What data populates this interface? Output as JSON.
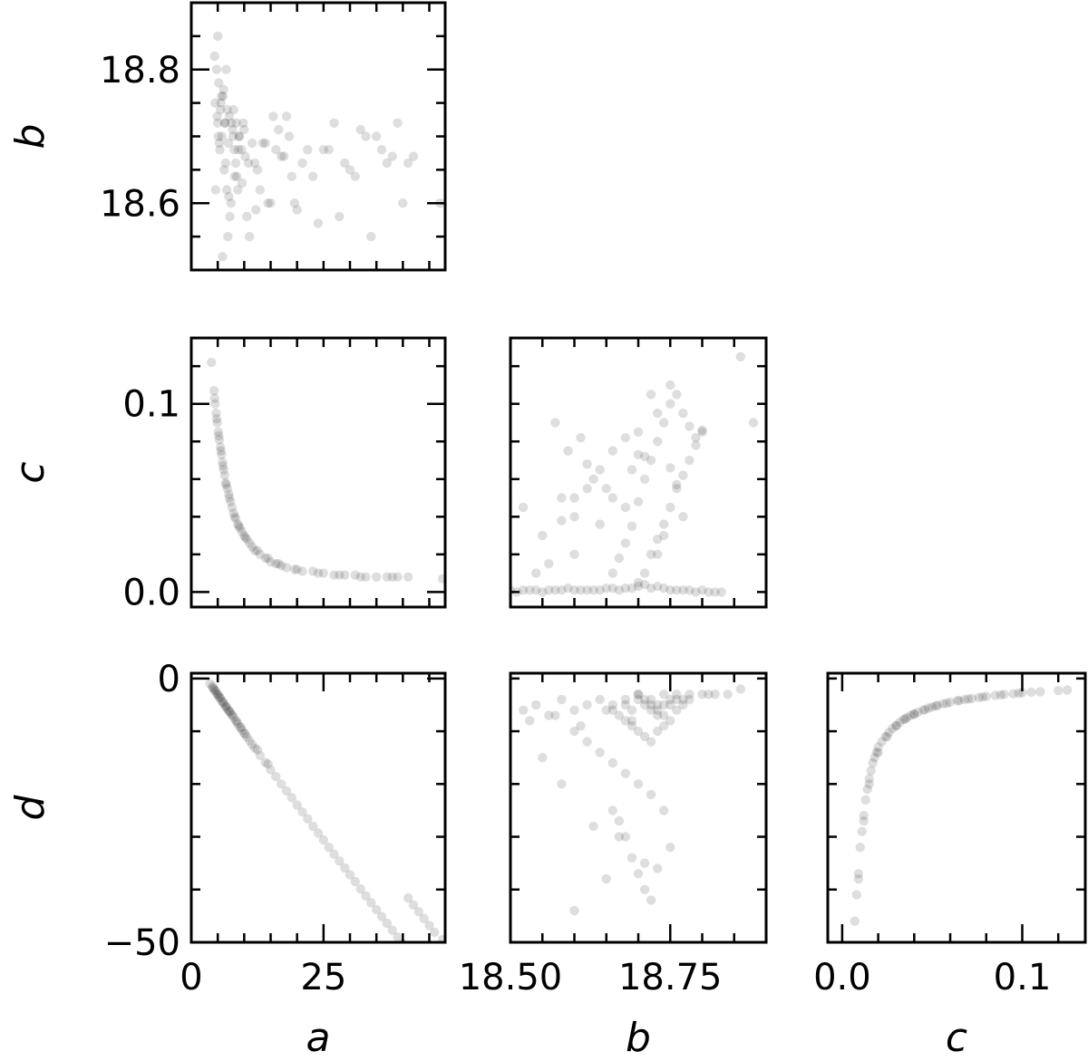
{
  "chart_data": [
    {
      "type": "scatter",
      "panel": "b-vs-a",
      "xlabel": "",
      "ylabel": "b",
      "xlim": [
        0,
        48
      ],
      "ylim": [
        18.5,
        18.9
      ],
      "xticks": [],
      "yticks": [
        18.6,
        18.8
      ],
      "ytick_labels": [
        "18.6",
        "18.8"
      ],
      "marker_color": "#000000",
      "x": [
        4.5,
        4.8,
        5.0,
        5.2,
        5.4,
        5.6,
        5.8,
        6.0,
        6.2,
        6.4,
        6.6,
        6.8,
        7.0,
        7.2,
        7.5,
        7.8,
        8.0,
        8.2,
        8.5,
        9.0,
        9.5,
        10.0,
        10.5,
        11.0,
        12.0,
        13.0,
        14.0,
        15.0,
        16.0,
        17.0,
        18.0,
        19.0,
        20.0,
        22.0,
        24.0,
        26.0,
        28.0,
        29.0,
        30.0,
        32.0,
        34.0,
        36.0,
        38.0,
        39.0,
        40.0,
        42.0,
        4.6,
        5.1,
        5.5,
        6.1,
        6.5,
        7.1,
        7.6,
        8.1,
        8.6,
        9.1,
        9.6,
        10.2,
        11.5,
        12.5,
        14.5,
        16.5,
        19.5,
        21.0,
        25.0,
        27.0,
        31.0,
        33.0,
        37.0,
        41.0,
        47.0,
        4.9,
        5.3,
        5.7,
        6.3,
        6.7,
        7.3,
        7.9,
        8.4,
        8.9,
        9.8,
        10.8,
        13.5,
        15.5,
        17.5,
        23.0,
        35.0,
        5.0,
        5.9,
        6.9,
        8.8,
        4.4,
        12.2,
        18.5
      ],
      "y": [
        18.75,
        18.8,
        18.72,
        18.78,
        18.68,
        18.75,
        18.7,
        18.76,
        18.65,
        18.72,
        18.8,
        18.74,
        18.69,
        18.73,
        18.6,
        18.71,
        18.74,
        18.64,
        18.72,
        18.7,
        18.68,
        18.71,
        18.58,
        18.55,
        18.66,
        18.62,
        18.69,
        18.6,
        18.68,
        18.67,
        18.73,
        18.64,
        18.59,
        18.68,
        18.57,
        18.68,
        18.58,
        18.66,
        18.65,
        18.71,
        18.55,
        18.68,
        18.67,
        18.72,
        18.6,
        18.67,
        18.62,
        18.7,
        18.74,
        18.77,
        18.66,
        18.61,
        18.72,
        18.68,
        18.64,
        18.7,
        18.63,
        18.67,
        18.69,
        18.65,
        18.6,
        18.71,
        18.6,
        18.66,
        18.68,
        18.72,
        18.64,
        18.7,
        18.66,
        18.66,
        18.6,
        18.73,
        18.69,
        18.76,
        18.72,
        18.62,
        18.58,
        18.7,
        18.66,
        18.68,
        18.72,
        18.66,
        18.69,
        18.73,
        18.67,
        18.64,
        18.7,
        18.85,
        18.52,
        18.55,
        18.62,
        18.82,
        18.59,
        18.7
      ]
    },
    {
      "type": "scatter",
      "panel": "c-vs-a",
      "xlabel": "",
      "ylabel": "c",
      "xlim": [
        0,
        48
      ],
      "ylim": [
        -0.008,
        0.135
      ],
      "xticks": [],
      "yticks": [
        0.0,
        0.1
      ],
      "ytick_labels": [
        "0.0",
        "0.1"
      ],
      "marker_color": "#000000",
      "x": [
        4.3,
        4.5,
        4.7,
        4.9,
        5.1,
        5.3,
        5.5,
        5.7,
        5.9,
        6.1,
        6.3,
        6.5,
        6.8,
        7.1,
        7.4,
        7.7,
        8.0,
        8.4,
        8.8,
        9.2,
        9.6,
        10.0,
        10.5,
        11.0,
        11.5,
        12.0,
        13.0,
        14.0,
        15.0,
        16.0,
        17.0,
        18.0,
        19.5,
        21.0,
        23.0,
        25.0,
        27.0,
        29.0,
        31.0,
        33.0,
        35.0,
        37.0,
        39.0,
        41.0,
        47.5,
        3.8,
        4.4,
        4.8,
        5.2,
        5.6,
        6.0,
        6.6,
        7.2,
        8.2,
        9.0,
        10.2,
        12.5,
        14.5,
        16.5,
        20.0,
        24.0,
        28.0,
        32.0,
        38.0
      ],
      "y": [
        0.107,
        0.1,
        0.095,
        0.09,
        0.085,
        0.081,
        0.077,
        0.073,
        0.069,
        0.065,
        0.062,
        0.058,
        0.055,
        0.052,
        0.048,
        0.045,
        0.042,
        0.039,
        0.036,
        0.034,
        0.032,
        0.03,
        0.028,
        0.026,
        0.024,
        0.022,
        0.02,
        0.018,
        0.016,
        0.015,
        0.014,
        0.013,
        0.012,
        0.011,
        0.011,
        0.01,
        0.009,
        0.009,
        0.009,
        0.008,
        0.008,
        0.008,
        0.008,
        0.008,
        0.007,
        0.122,
        0.103,
        0.092,
        0.083,
        0.075,
        0.067,
        0.057,
        0.05,
        0.04,
        0.035,
        0.029,
        0.022,
        0.018,
        0.015,
        0.012,
        0.01,
        0.009,
        0.008,
        0.008
      ]
    },
    {
      "type": "scatter",
      "panel": "c-vs-b",
      "xlabel": "",
      "ylabel": "",
      "xlim": [
        18.5,
        18.9
      ],
      "ylim": [
        -0.008,
        0.135
      ],
      "xticks": [],
      "yticks": [],
      "marker_color": "#000000",
      "x": [
        18.5,
        18.52,
        18.54,
        18.56,
        18.58,
        18.6,
        18.62,
        18.64,
        18.66,
        18.68,
        18.7,
        18.72,
        18.74,
        18.76,
        18.78,
        18.8,
        18.82,
        18.83,
        18.51,
        18.53,
        18.55,
        18.57,
        18.59,
        18.61,
        18.63,
        18.65,
        18.67,
        18.69,
        18.71,
        18.73,
        18.75,
        18.77,
        18.79,
        18.81,
        18.7,
        18.71,
        18.72,
        18.73,
        18.74,
        18.75,
        18.76,
        18.77,
        18.78,
        18.79,
        18.8,
        18.66,
        18.67,
        18.68,
        18.69,
        18.7,
        18.71,
        18.72,
        18.73,
        18.74,
        18.75,
        18.76,
        18.77,
        18.78,
        18.79,
        18.8,
        18.57,
        18.59,
        18.61,
        18.63,
        18.6,
        18.62,
        18.64,
        18.66,
        18.68,
        18.7,
        18.52,
        18.55,
        18.6,
        18.65,
        18.72,
        18.75,
        18.86,
        18.88,
        18.54,
        18.58,
        18.62,
        18.66,
        18.69,
        18.71,
        18.73,
        18.74,
        18.76,
        18.77,
        18.64,
        18.68,
        18.7,
        18.73,
        18.75,
        18.56,
        18.58,
        18.6
      ],
      "y": [
        0.001,
        0.001,
        0.001,
        0.001,
        0.001,
        0.001,
        0.001,
        0.001,
        0.002,
        0.002,
        0.003,
        0.002,
        0.002,
        0.001,
        0.001,
        0.001,
        0.0,
        0.0,
        0.0,
        0.001,
        0.0,
        0.001,
        0.002,
        0.001,
        0.001,
        0.002,
        0.001,
        0.002,
        0.004,
        0.003,
        0.001,
        0.001,
        0.0,
        0.0,
        0.005,
        0.01,
        0.02,
        0.028,
        0.036,
        0.045,
        0.055,
        0.062,
        0.07,
        0.078,
        0.085,
        0.01,
        0.018,
        0.026,
        0.035,
        0.048,
        0.06,
        0.07,
        0.08,
        0.09,
        0.1,
        0.105,
        0.095,
        0.088,
        0.082,
        0.086,
        0.09,
        0.075,
        0.082,
        0.06,
        0.05,
        0.055,
        0.065,
        0.075,
        0.082,
        0.073,
        0.045,
        0.03,
        0.04,
        0.055,
        0.105,
        0.11,
        0.125,
        0.09,
        0.01,
        0.038,
        0.068,
        0.05,
        0.065,
        0.072,
        0.02,
        0.03,
        0.057,
        0.04,
        0.036,
        0.045,
        0.085,
        0.095,
        0.066,
        0.015,
        0.05,
        0.02
      ]
    },
    {
      "type": "scatter",
      "panel": "d-vs-a",
      "xlabel": "a",
      "ylabel": "d",
      "xlim": [
        0,
        48
      ],
      "ylim": [
        -50,
        1
      ],
      "xticks": [
        0,
        25
      ],
      "xtick_labels": [
        "0",
        "25"
      ],
      "yticks": [
        -50,
        0
      ],
      "ytick_labels": [
        "−50",
        "0"
      ],
      "marker_color": "#000000",
      "x": [
        3.5,
        4.0,
        4.3,
        4.6,
        4.9,
        5.2,
        5.5,
        5.8,
        6.1,
        6.4,
        6.7,
        7.0,
        7.3,
        7.6,
        8.0,
        8.4,
        8.8,
        9.2,
        9.6,
        10.0,
        10.5,
        11.0,
        11.5,
        12.0,
        13.0,
        14.0,
        15.0,
        16.0,
        17.0,
        18.0,
        19.0,
        20.0,
        21.0,
        22.0,
        23.0,
        24.0,
        25.0,
        26.0,
        27.0,
        28.0,
        29.0,
        30.0,
        31.0,
        32.0,
        33.0,
        34.0,
        35.0,
        36.0,
        37.0,
        38.0,
        39.0,
        40.0,
        41.0,
        42.0,
        43.0,
        44.0,
        45.0,
        46.0,
        47.5,
        4.1,
        4.5,
        5.0,
        5.4,
        6.0,
        6.6,
        7.2,
        7.8,
        8.6,
        9.4,
        10.2,
        12.5,
        14.5
      ],
      "y": [
        -1.0,
        -1.5,
        -2.0,
        -2.5,
        -3.0,
        -3.4,
        -3.8,
        -4.3,
        -4.7,
        -5.2,
        -5.6,
        -6.0,
        -6.4,
        -6.8,
        -7.4,
        -8.0,
        -8.6,
        -9.2,
        -9.8,
        -10.4,
        -11.1,
        -11.8,
        -12.5,
        -13.2,
        -14.6,
        -15.9,
        -17.3,
        -18.6,
        -20.0,
        -21.3,
        -22.6,
        -24.0,
        -25.3,
        -26.6,
        -28.0,
        -29.3,
        -30.6,
        -32.0,
        -33.3,
        -34.6,
        -35.9,
        -37.2,
        -38.5,
        -39.9,
        -41.2,
        -42.5,
        -43.8,
        -45.1,
        -46.4,
        -47.7,
        -49.0,
        -50.3,
        -41.6,
        -42.9,
        -44.2,
        -45.5,
        -46.8,
        -48.1,
        -49.5,
        -1.8,
        -2.3,
        -3.0,
        -3.6,
        -4.5,
        -5.3,
        -6.2,
        -7.0,
        -8.2,
        -9.3,
        -10.5,
        -13.5,
        -16.2
      ]
    },
    {
      "type": "scatter",
      "panel": "d-vs-b",
      "xlabel": "b",
      "ylabel": "",
      "xlim": [
        18.5,
        18.9
      ],
      "ylim": [
        -50,
        1
      ],
      "xticks": [
        18.5,
        18.75
      ],
      "xtick_labels": [
        "18.50",
        "18.75"
      ],
      "yticks": [],
      "marker_color": "#000000",
      "x": [
        18.52,
        18.54,
        18.56,
        18.58,
        18.6,
        18.62,
        18.64,
        18.66,
        18.68,
        18.7,
        18.72,
        18.74,
        18.76,
        18.78,
        18.8,
        18.82,
        18.84,
        18.86,
        18.53,
        18.57,
        18.61,
        18.65,
        18.69,
        18.73,
        18.77,
        18.81,
        18.7,
        18.71,
        18.72,
        18.73,
        18.74,
        18.75,
        18.76,
        18.68,
        18.69,
        18.7,
        18.71,
        18.72,
        18.73,
        18.74,
        18.75,
        18.76,
        18.77,
        18.78,
        18.66,
        18.67,
        18.68,
        18.69,
        18.7,
        18.71,
        18.72,
        18.73,
        18.74,
        18.75,
        18.6,
        18.62,
        18.64,
        18.66,
        18.68,
        18.7,
        18.72,
        18.74,
        18.55,
        18.58,
        18.63,
        18.67,
        18.71,
        18.75,
        18.6,
        18.65,
        18.66,
        18.67,
        18.68,
        18.69,
        18.7,
        18.71,
        18.72,
        18.73
      ],
      "y": [
        -6,
        -5,
        -7,
        -4,
        -6,
        -5,
        -4,
        -5,
        -4,
        -3,
        -4,
        -3,
        -3,
        -3,
        -3,
        -3,
        -3,
        -2,
        -8,
        -7,
        -9,
        -6,
        -8,
        -5,
        -4,
        -3,
        -3,
        -4,
        -5,
        -6,
        -7,
        -5,
        -4,
        -8,
        -9,
        -10,
        -11,
        -12,
        -10,
        -9,
        -8,
        -6,
        -5,
        -4,
        -6,
        -7,
        -5,
        -6,
        -4,
        -5,
        -6,
        -7,
        -5,
        -4,
        -10,
        -12,
        -14,
        -16,
        -18,
        -20,
        -22,
        -25,
        -15,
        -20,
        -28,
        -30,
        -35,
        -32,
        -44,
        -38,
        -25,
        -27,
        -30,
        -34,
        -37,
        -40,
        -42,
        -36
      ]
    },
    {
      "type": "scatter",
      "panel": "d-vs-c",
      "xlabel": "c",
      "ylabel": "",
      "xlim": [
        -0.008,
        0.135
      ],
      "ylim": [
        -50,
        1
      ],
      "xticks": [
        0.0,
        0.1
      ],
      "xtick_labels": [
        "0.0",
        "0.1"
      ],
      "yticks": [],
      "marker_color": "#000000",
      "x": [
        0.007,
        0.008,
        0.009,
        0.01,
        0.011,
        0.012,
        0.013,
        0.014,
        0.015,
        0.016,
        0.017,
        0.018,
        0.019,
        0.02,
        0.022,
        0.024,
        0.026,
        0.028,
        0.03,
        0.032,
        0.034,
        0.036,
        0.038,
        0.04,
        0.042,
        0.045,
        0.048,
        0.05,
        0.053,
        0.056,
        0.06,
        0.064,
        0.068,
        0.072,
        0.076,
        0.08,
        0.085,
        0.09,
        0.095,
        0.1,
        0.105,
        0.11,
        0.12,
        0.125,
        0.009,
        0.012,
        0.015,
        0.02,
        0.025,
        0.03,
        0.035,
        0.04,
        0.046,
        0.052,
        0.058,
        0.065,
        0.07,
        0.078,
        0.088,
        0.098
      ],
      "y": [
        -46,
        -41,
        -37,
        -32,
        -29,
        -26,
        -23,
        -21,
        -19,
        -17.5,
        -16,
        -15,
        -14,
        -13,
        -12,
        -11,
        -10.2,
        -9.5,
        -8.9,
        -8.3,
        -7.8,
        -7.4,
        -7.0,
        -6.7,
        -6.4,
        -6.0,
        -5.6,
        -5.4,
        -5.1,
        -4.8,
        -4.5,
        -4.2,
        -4.0,
        -3.8,
        -3.6,
        -3.4,
        -3.2,
        -3.0,
        -2.9,
        -2.7,
        -2.6,
        -2.5,
        -2.3,
        -2.2,
        -38,
        -27,
        -20,
        -14,
        -11,
        -9,
        -7.7,
        -6.8,
        -5.9,
        -5.2,
        -4.7,
        -4.2,
        -3.9,
        -3.5,
        -3.1,
        -2.8
      ]
    }
  ]
}
